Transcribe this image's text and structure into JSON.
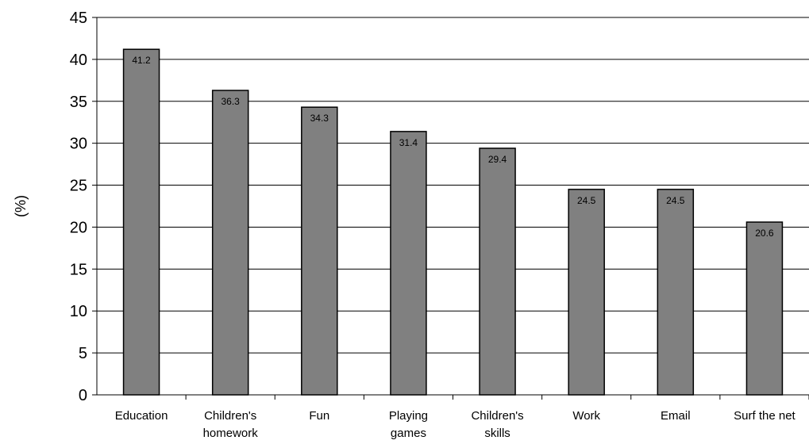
{
  "chart_data": {
    "type": "bar",
    "title": "",
    "xlabel": "",
    "ylabel": "(%)",
    "ylim": [
      0,
      45
    ],
    "yticks": [
      0,
      5,
      10,
      15,
      20,
      25,
      30,
      35,
      40,
      45
    ],
    "grid": true,
    "categories": [
      [
        "Education"
      ],
      [
        "Children's",
        "homework"
      ],
      [
        "Fun"
      ],
      [
        "Playing",
        "games"
      ],
      [
        "Children's",
        "skills"
      ],
      [
        "Work"
      ],
      [
        "Email"
      ],
      [
        "Surf the net"
      ]
    ],
    "values": [
      41.2,
      36.3,
      34.3,
      31.4,
      29.4,
      24.5,
      24.5,
      20.6
    ],
    "data_labels": [
      "41.2",
      "36.3",
      "34.3",
      "31.4",
      "29.4",
      "24.5",
      "24.5",
      "20.6"
    ],
    "colors": {
      "bar": "#808080",
      "bar_stroke": "#000000",
      "grid": "#000000"
    }
  }
}
